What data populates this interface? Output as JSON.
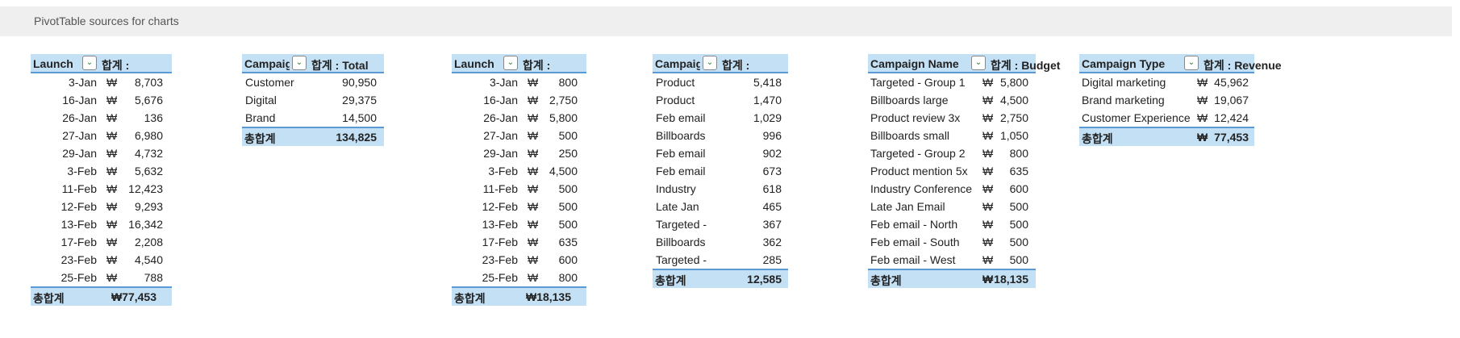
{
  "banner": {
    "title": "PivotTable sources for charts"
  },
  "colors": {
    "header_fill": "#c4e0f5",
    "border": "#5b9bd5",
    "banner": "#efefef"
  },
  "pivots": [
    {
      "row_header": "Launch",
      "value_header": "합계 :",
      "currency": "₩",
      "rows": [
        [
          "3-Jan",
          "8,703"
        ],
        [
          "16-Jan",
          "5,676"
        ],
        [
          "26-Jan",
          "136"
        ],
        [
          "27-Jan",
          "6,980"
        ],
        [
          "29-Jan",
          "4,732"
        ],
        [
          "3-Feb",
          "5,632"
        ],
        [
          "11-Feb",
          "12,423"
        ],
        [
          "12-Feb",
          "9,293"
        ],
        [
          "13-Feb",
          "16,342"
        ],
        [
          "17-Feb",
          "2,208"
        ],
        [
          "23-Feb",
          "4,540"
        ],
        [
          "25-Feb",
          "788"
        ]
      ],
      "total_label": "총합계",
      "total_value": "₩77,453"
    },
    {
      "row_header": "Campaig",
      "value_header": "합계 : Total",
      "currency": "",
      "rows": [
        [
          "Customer",
          "90,950"
        ],
        [
          "Digital",
          "29,375"
        ],
        [
          "Brand",
          "14,500"
        ]
      ],
      "total_label": "총합계",
      "total_value": "134,825"
    },
    {
      "row_header": "Launch",
      "value_header": "합계 :",
      "currency": "₩",
      "rows": [
        [
          "3-Jan",
          "800"
        ],
        [
          "16-Jan",
          "2,750"
        ],
        [
          "26-Jan",
          "5,800"
        ],
        [
          "27-Jan",
          "500"
        ],
        [
          "29-Jan",
          "250"
        ],
        [
          "3-Feb",
          "4,500"
        ],
        [
          "11-Feb",
          "500"
        ],
        [
          "12-Feb",
          "500"
        ],
        [
          "13-Feb",
          "500"
        ],
        [
          "17-Feb",
          "635"
        ],
        [
          "23-Feb",
          "600"
        ],
        [
          "25-Feb",
          "800"
        ]
      ],
      "total_label": "총합계",
      "total_value": "₩18,135"
    },
    {
      "row_header": "Campaig",
      "value_header": "합계 :",
      "currency": "",
      "rows": [
        [
          "Product",
          "5,418"
        ],
        [
          "Product",
          "1,470"
        ],
        [
          "Feb email",
          "1,029"
        ],
        [
          "Billboards",
          "996"
        ],
        [
          "Feb email",
          "902"
        ],
        [
          "Feb email",
          "673"
        ],
        [
          "Industry",
          "618"
        ],
        [
          "Late Jan",
          "465"
        ],
        [
          "Targeted -",
          "367"
        ],
        [
          "Billboards",
          "362"
        ],
        [
          "Targeted -",
          "285"
        ]
      ],
      "total_label": "총합계",
      "total_value": "12,585"
    },
    {
      "row_header": "Campaign Name",
      "value_header": "합계 : Budget",
      "currency": "₩",
      "rows": [
        [
          "Targeted - Group 1",
          "5,800"
        ],
        [
          "Billboards large",
          "4,500"
        ],
        [
          "Product review 3x",
          "2,750"
        ],
        [
          "Billboards small",
          "1,050"
        ],
        [
          "Targeted - Group 2",
          "800"
        ],
        [
          "Product mention 5x",
          "635"
        ],
        [
          "Industry Conference",
          "600"
        ],
        [
          "Late Jan Email",
          "500"
        ],
        [
          "Feb email - North",
          "500"
        ],
        [
          "Feb email - South",
          "500"
        ],
        [
          "Feb email - West",
          "500"
        ]
      ],
      "total_label": "총합계",
      "total_currency": "₩",
      "total_value": "18,135"
    },
    {
      "row_header": "Campaign Type",
      "value_header": "합계 : Revenue",
      "currency": "₩",
      "rows": [
        [
          "Digital marketing",
          "45,962"
        ],
        [
          "Brand marketing",
          "19,067"
        ],
        [
          "Customer Experience",
          "12,424"
        ]
      ],
      "total_label": "총합계",
      "total_currency": "₩",
      "total_value": "77,453"
    }
  ]
}
